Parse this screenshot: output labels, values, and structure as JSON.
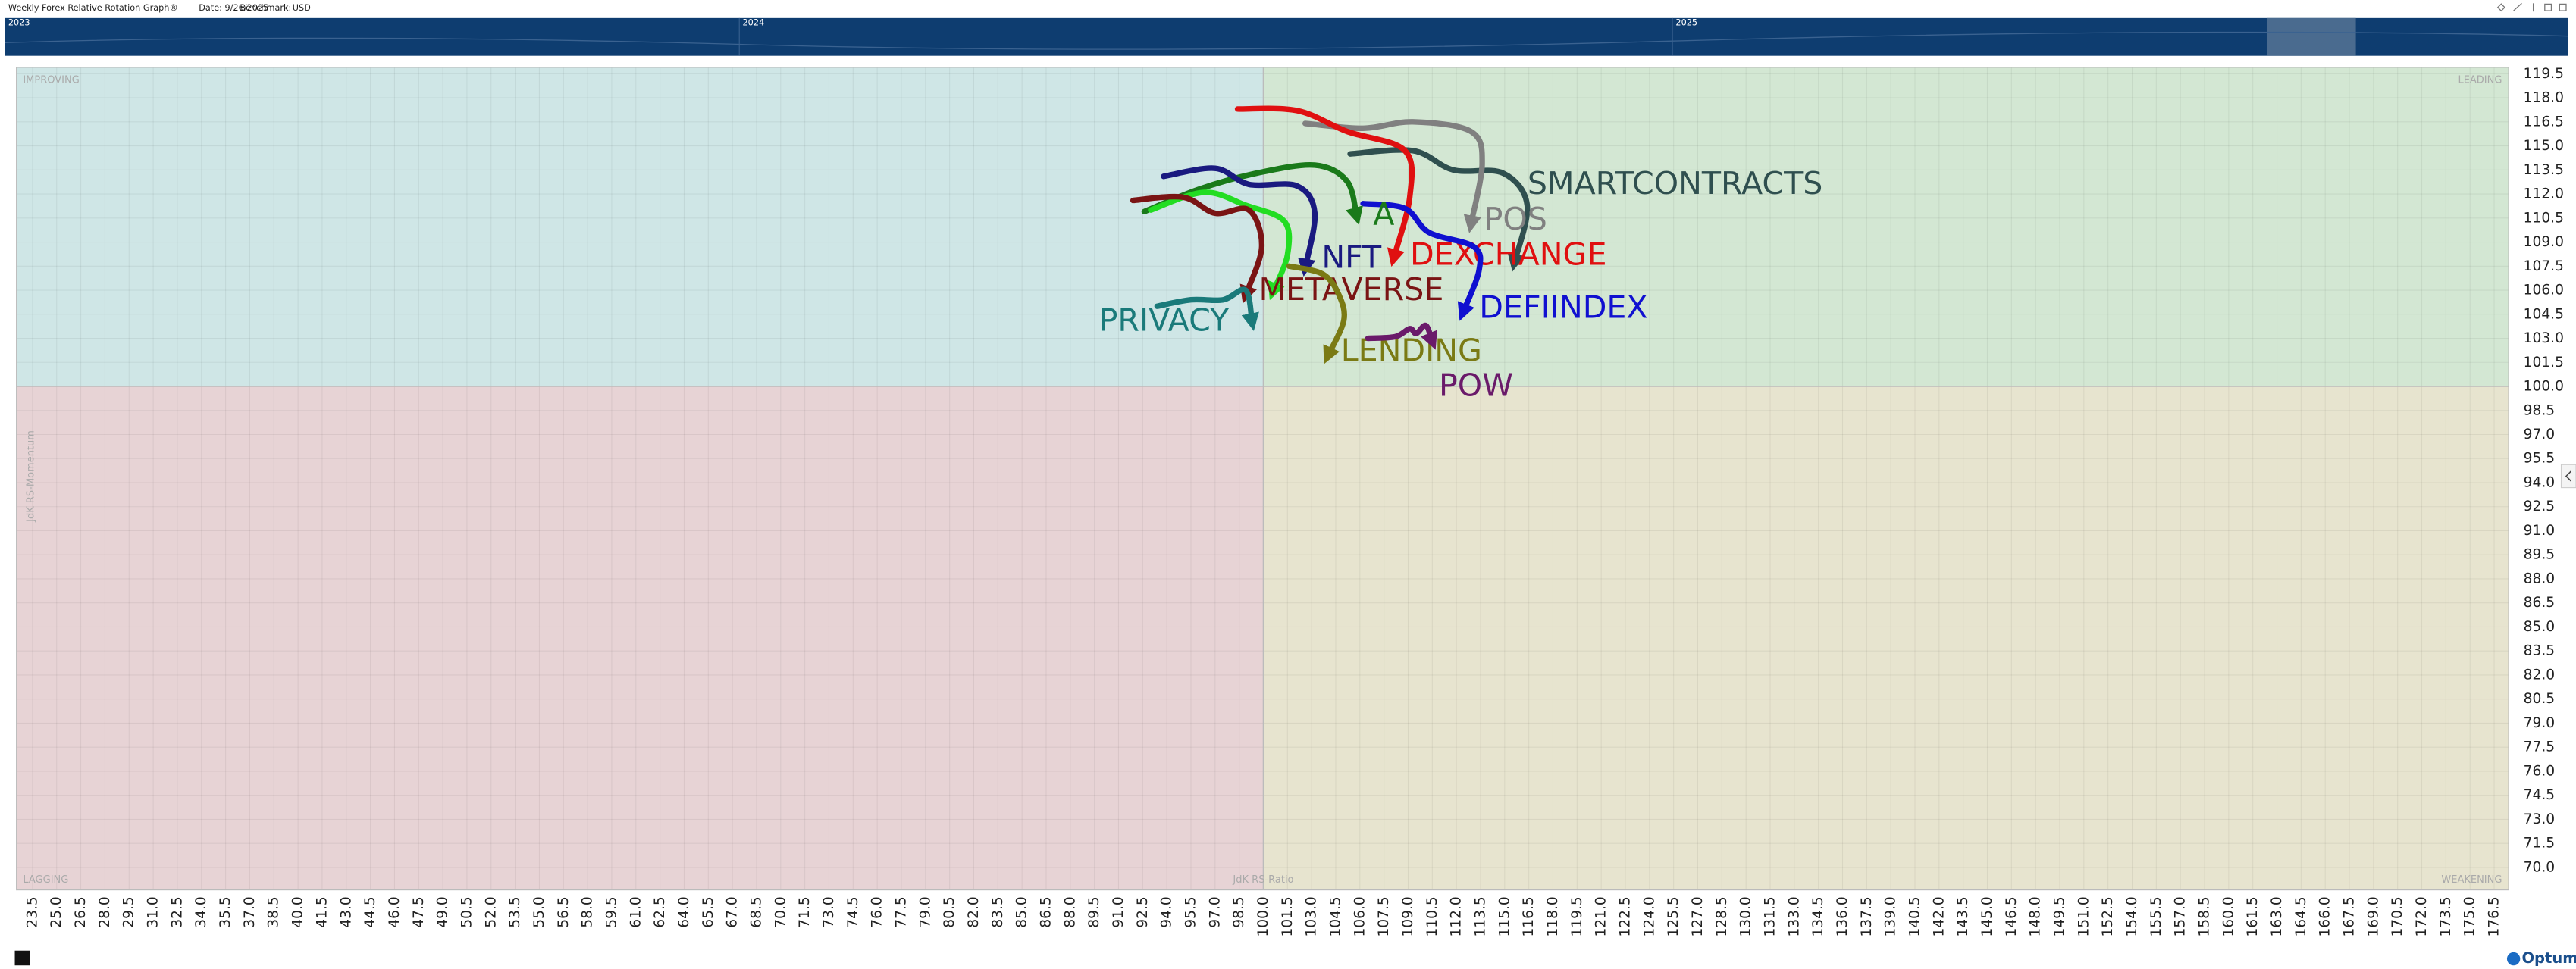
{
  "header": {
    "title": "Weekly Forex Relative Rotation Graph®",
    "date": "Date: 9/26/2025",
    "benchmark_label": "Benchmark:",
    "benchmark": "USD"
  },
  "timeline": {
    "years": [
      "2023",
      "2024",
      "2025"
    ]
  },
  "footer": {
    "logo": "Optuma"
  },
  "chart_data": {
    "type": "line",
    "x_label": "JdK RS-Ratio",
    "y_label": "JdK RS-Momentum",
    "quadrant_labels": [
      "IMPROVING",
      "LEADING",
      "LAGGING",
      "WEAKENING"
    ],
    "quadrant_colors": [
      "#cfe6e6",
      "#d3e7d3",
      "#e7d3d5",
      "#e7e4cf"
    ],
    "center": {
      "x": 100,
      "y": 100
    },
    "xlim": [
      22.5,
      177.4
    ],
    "ylim": [
      68.6,
      119.9
    ],
    "grid": true,
    "series": [
      {
        "name": "SMARTCONTRACTS",
        "color": "#2f4f4f",
        "x": [
          105.4,
          109.3,
          111.8,
          114.9,
          116.4,
          115.6
        ],
        "values": [
          114.5,
          114.7,
          113.5,
          113.3,
          111.3,
          107.7
        ]
      },
      {
        "name": "POS",
        "color": "#808080",
        "x": [
          102.6,
          106.2,
          109.3,
          112.9,
          113.6,
          112.9
        ],
        "values": [
          116.4,
          116.1,
          116.5,
          115.9,
          113.9,
          110.1
        ]
      },
      {
        "name": "DEXCHANGE",
        "color": "#e01010",
        "x": [
          98.4,
          102.1,
          105.2,
          108.8,
          109.1,
          108.1
        ],
        "values": [
          117.3,
          117.2,
          115.9,
          114.7,
          111.8,
          108.0
        ]
      },
      {
        "name": "DEFIINDEX",
        "color": "#1010d0",
        "x": [
          106.2,
          108.8,
          110.3,
          113.1,
          113.4,
          112.4
        ],
        "values": [
          111.4,
          111.1,
          109.6,
          108.7,
          107.2,
          104.6
        ]
      },
      {
        "name": "A",
        "color": "#1a7a1a",
        "x": [
          92.6,
          96.0,
          99.6,
          103.2,
          105.2,
          105.8
        ],
        "values": [
          110.9,
          112.3,
          113.3,
          113.8,
          112.8,
          110.6
        ]
      },
      {
        "name": "NFT",
        "color": "#1a1a80",
        "x": [
          93.8,
          97.0,
          99.1,
          102.1,
          103.2,
          102.6
        ],
        "values": [
          113.1,
          113.6,
          112.6,
          112.5,
          110.8,
          107.4
        ]
      },
      {
        "color": "#22dd22",
        "x": [
          93.0,
          96.3,
          98.9,
          101.3,
          101.5,
          100.6
        ],
        "values": [
          111.0,
          112.1,
          111.3,
          110.3,
          108.2,
          105.9
        ]
      },
      {
        "name": "METAVERSE",
        "color": "#7a1414",
        "x": [
          91.9,
          95.0,
          97.0,
          99.1,
          99.9,
          98.9
        ],
        "values": [
          111.6,
          111.8,
          110.8,
          111.0,
          108.7,
          105.7
        ]
      },
      {
        "name": "PRIVACY",
        "color": "#1a7a7a",
        "x": [
          93.4,
          95.5,
          97.5,
          98.9,
          99.3
        ],
        "values": [
          105.0,
          105.4,
          105.4,
          106.0,
          104.0
        ]
      },
      {
        "name": "LENDING",
        "color": "#7a7a14",
        "x": [
          101.6,
          103.7,
          104.7,
          105.0,
          104.0
        ],
        "values": [
          107.5,
          107.0,
          105.7,
          104.1,
          101.9
        ]
      },
      {
        "name": "POW",
        "color": "#6a1a6a",
        "x": [
          106.5,
          108.2,
          109.1,
          109.5,
          110.1,
          110.5
        ],
        "values": [
          103.0,
          103.1,
          103.6,
          103.3,
          103.8,
          102.8
        ]
      }
    ],
    "xticks": [
      23.5,
      {
        "value": 25,
        "label": "25.0"
      },
      26.5,
      {
        "value": 28,
        "label": "28.0"
      },
      29.5,
      {
        "value": 31,
        "label": "31.0"
      },
      32.5,
      {
        "value": 34,
        "label": "34.0"
      },
      35.5,
      {
        "value": 37,
        "label": "37.0"
      },
      38.5,
      {
        "value": 40,
        "label": "40.0"
      },
      41.5,
      {
        "value": 43,
        "label": "43.0"
      },
      44.5,
      {
        "value": 46,
        "label": "46.0"
      },
      47.5,
      {
        "value": 49,
        "label": "49.0"
      },
      50.5,
      {
        "value": 52,
        "label": "52.0"
      },
      53.5,
      {
        "value": 55,
        "label": "55.0"
      },
      56.5,
      {
        "value": 58,
        "label": "58.0"
      },
      59.5,
      {
        "value": 61,
        "label": "61.0"
      },
      62.5,
      {
        "value": 64,
        "label": "64.0"
      },
      65.5,
      {
        "value": 67,
        "label": "67.0"
      },
      68.5,
      {
        "value": 70,
        "label": "70.0"
      },
      71.5,
      {
        "value": 73,
        "label": "73.0"
      },
      74.5,
      {
        "value": 76,
        "label": "76.0"
      },
      77.5,
      {
        "value": 79,
        "label": "79.0"
      },
      80.5,
      {
        "value": 82,
        "label": "82.0"
      },
      83.5,
      {
        "value": 85,
        "label": "85.0"
      },
      86.5,
      {
        "value": 88,
        "label": "88.0"
      },
      89.5,
      {
        "value": 91,
        "label": "91.0"
      },
      92.5,
      {
        "value": 94,
        "label": "94.0"
      },
      95.5,
      {
        "value": 97,
        "label": "97.0"
      },
      98.5,
      {
        "value": 100,
        "label": "100.0"
      },
      101.5,
      {
        "value": 103,
        "label": "103.0"
      },
      104.5,
      {
        "value": 106,
        "label": "106.0"
      },
      107.5,
      {
        "value": 109,
        "label": "109.0"
      },
      110.5,
      {
        "value": 112,
        "label": "112.0"
      },
      113.5,
      {
        "value": 115,
        "label": "115.0"
      },
      116.5,
      {
        "value": 118,
        "label": "118.0"
      },
      119.5,
      {
        "value": 121,
        "label": "121.0"
      },
      122.5,
      {
        "value": 124,
        "label": "124.0"
      },
      125.5,
      {
        "value": 127,
        "label": "127.0"
      },
      128.5,
      {
        "value": 130,
        "label": "130.0"
      },
      131.5,
      {
        "value": 133,
        "label": "133.0"
      },
      134.5,
      {
        "value": 136,
        "label": "136.0"
      },
      137.5,
      {
        "value": 139,
        "label": "139.0"
      },
      140.5,
      {
        "value": 142,
        "label": "142.0"
      },
      143.5,
      {
        "value": 145,
        "label": "145.0"
      },
      146.5,
      {
        "value": 148,
        "label": "148.0"
      },
      149.5,
      {
        "value": 151,
        "label": "151.0"
      },
      152.5,
      {
        "value": 154,
        "label": "154.0"
      },
      155.5,
      {
        "value": 157,
        "label": "157.0"
      },
      158.5,
      {
        "value": 160,
        "label": "160.0"
      },
      161.5,
      {
        "value": 163,
        "label": "163.0"
      },
      164.5,
      {
        "value": 166,
        "label": "166.0"
      },
      167.5,
      {
        "value": 169,
        "label": "169.0"
      },
      170.5,
      {
        "value": 172,
        "label": "172.0"
      },
      173.5,
      {
        "value": 175,
        "label": "175.0"
      },
      176.5
    ],
    "yticks": [
      {
        "value": 70,
        "label": "70.0"
      },
      71.5,
      {
        "value": 73,
        "label": "73.0"
      },
      74.5,
      {
        "value": 76,
        "label": "76.0"
      },
      77.5,
      {
        "value": 79,
        "label": "79.0"
      },
      80.5,
      {
        "value": 82,
        "label": "82.0"
      },
      83.5,
      {
        "value": 85,
        "label": "85.0"
      },
      86.5,
      {
        "value": 88,
        "label": "88.0"
      },
      89.5,
      {
        "value": 91,
        "label": "91.0"
      },
      92.5,
      {
        "value": 94,
        "label": "94.0"
      },
      95.5,
      {
        "value": 97,
        "label": "97.0"
      },
      98.5,
      {
        "value": 100,
        "label": "100.0"
      },
      101.5,
      {
        "value": 103,
        "label": "103.0"
      },
      104.5,
      {
        "value": 106,
        "label": "106.0"
      },
      107.5,
      {
        "value": 109,
        "label": "109.0"
      },
      110.5,
      {
        "value": 112,
        "label": "112.0"
      },
      113.5,
      {
        "value": 115,
        "label": "115.0"
      },
      116.5,
      {
        "value": 118,
        "label": "118.0"
      },
      119.5
    ]
  }
}
